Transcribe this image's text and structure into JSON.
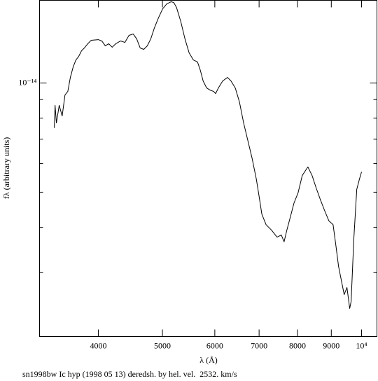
{
  "chart_data": {
    "type": "line",
    "xlabel": "λ (Å)",
    "ylabel": "fλ (arbitrary units)",
    "caption": "sn1998bw Ic hyp (1998 05 13) deredsh. by hel. vel.  2532. km/s",
    "xlog": true,
    "ylog": true,
    "xlim": [
      3260,
      10550
    ],
    "ylim": [
      2e-15,
      1.69e-14
    ],
    "xticks": [
      4000,
      5000,
      6000,
      7000,
      8000,
      9000,
      {
        "value": 10000,
        "label": "10⁴"
      }
    ],
    "yticks": [
      {
        "value": 1e-14,
        "label": "10⁻¹⁴"
      }
    ],
    "yminorticks": [
      3e-15,
      4e-15,
      5e-15,
      6e-15,
      7e-15,
      8e-15,
      9e-15
    ],
    "x": [
      3432,
      3441,
      3457,
      3491,
      3527,
      3562,
      3597,
      3629,
      3665,
      3700,
      3736,
      3773,
      3810,
      3856,
      3903,
      4000,
      4049,
      4098,
      4148,
      4198,
      4250,
      4323,
      4388,
      4451,
      4516,
      4572,
      4627,
      4685,
      4743,
      4801,
      4859,
      4931,
      5004,
      5076,
      5152,
      5201,
      5251,
      5329,
      5408,
      5487,
      5567,
      5649,
      5706,
      5761,
      5832,
      5903,
      5975,
      6017,
      6075,
      6166,
      6271,
      6348,
      6443,
      6537,
      6633,
      6730,
      6830,
      6932,
      7000,
      7067,
      7171,
      7309,
      7451,
      7563,
      7636,
      7710,
      7825,
      7902,
      8017,
      8135,
      8295,
      8417,
      8540,
      8667,
      8793,
      8923,
      9056,
      9144,
      9231,
      9323,
      9413,
      9504,
      9596,
      9643,
      9735,
      9834,
      9928,
      10000
    ],
    "series": [
      {
        "color": "#000000",
        "values": [
          7.52e-15,
          8.68e-15,
          7.76e-15,
          8.68e-15,
          8.11e-15,
          9.27e-15,
          9.48e-15,
          1.036e-14,
          1.108e-14,
          1.158e-14,
          1.184e-14,
          1.227e-14,
          1.249e-14,
          1.283e-14,
          1.312e-14,
          1.317e-14,
          1.306e-14,
          1.266e-14,
          1.283e-14,
          1.255e-14,
          1.283e-14,
          1.306e-14,
          1.294e-14,
          1.353e-14,
          1.365e-14,
          1.323e-14,
          1.249e-14,
          1.238e-14,
          1.266e-14,
          1.323e-14,
          1.414e-14,
          1.512e-14,
          1.602e-14,
          1.652e-14,
          1.675e-14,
          1.667e-14,
          1.616e-14,
          1.479e-14,
          1.323e-14,
          1.211e-14,
          1.158e-14,
          1.143e-14,
          1.083e-14,
          1.013e-14,
          9.69e-15,
          9.56e-15,
          9.48e-15,
          9.35e-15,
          9.69e-15,
          1.013e-14,
          1.036e-14,
          1.013e-14,
          9.69e-15,
          8.87e-15,
          7.76e-15,
          6.95e-15,
          6.21e-15,
          5.44e-15,
          4.87e-15,
          4.35e-15,
          4.07e-15,
          3.93e-15,
          3.76e-15,
          3.81e-15,
          3.65e-15,
          3.93e-15,
          4.35e-15,
          4.66e-15,
          4.98e-15,
          5.56e-15,
          5.87e-15,
          5.56e-15,
          5.13e-15,
          4.76e-15,
          4.45e-15,
          4.17e-15,
          4.07e-15,
          3.57e-15,
          3.12e-15,
          2.85e-15,
          2.61e-15,
          2.73e-15,
          2.39e-15,
          2.5e-15,
          3.73e-15,
          5.09e-15,
          5.44e-15,
          5.69e-15
        ]
      }
    ]
  }
}
